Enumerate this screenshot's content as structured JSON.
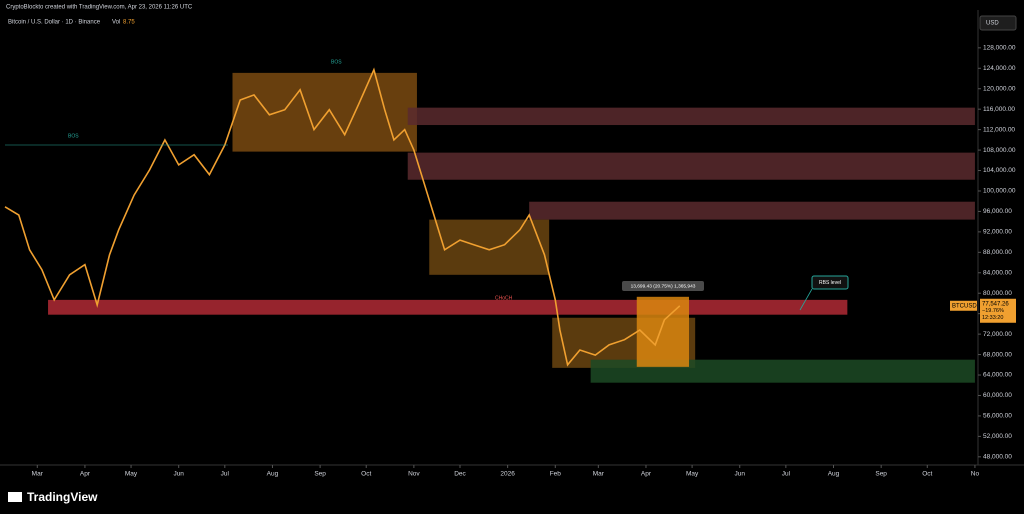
{
  "header": {
    "credit": "CryptoBlockto created with TradingView.com, Apr 23, 2026 11:26 UTC",
    "symbol": "Bitcoin / U.S. Dollar · 1D · Binance",
    "volume_label": "Vol",
    "volume_value": "8.75",
    "currency": "USD",
    "brand": "TradingView"
  },
  "chart_data": {
    "type": "line",
    "color": "#f0a030",
    "x": [
      -21,
      -12,
      -5,
      3,
      11,
      21,
      31,
      39,
      47,
      53,
      63,
      73,
      83,
      92,
      102,
      112,
      122,
      132,
      141,
      151,
      161,
      171,
      180,
      190,
      200,
      209,
      219,
      226,
      232,
      239,
      245,
      252,
      258,
      265,
      275,
      284,
      294,
      304,
      314,
      320,
      330,
      337,
      340,
      345,
      353,
      363,
      372,
      382,
      392,
      402,
      408,
      418
    ],
    "values": [
      96900,
      95300,
      88500,
      84600,
      78700,
      83600,
      85600,
      77700,
      87500,
      92400,
      99200,
      104100,
      110000,
      105100,
      107100,
      103200,
      109000,
      117800,
      118800,
      114900,
      115900,
      119800,
      112000,
      115900,
      111000,
      116900,
      123700,
      115900,
      110000,
      112000,
      108000,
      101200,
      95300,
      88500,
      90400,
      89500,
      88500,
      89500,
      92400,
      95300,
      87500,
      78700,
      72800,
      66000,
      68900,
      67900,
      69900,
      70900,
      72800,
      69900,
      74800,
      77547.26
    ],
    "xlim": [
      -21,
      612
    ],
    "ylim": [
      46400,
      135400
    ],
    "xticks": [
      {
        "value": 0,
        "label": "Mar"
      },
      {
        "value": 31,
        "label": "Apr"
      },
      {
        "value": 61,
        "label": "May"
      },
      {
        "value": 92,
        "label": "Jun"
      },
      {
        "value": 122,
        "label": "Jul"
      },
      {
        "value": 153,
        "label": "Aug"
      },
      {
        "value": 184,
        "label": "Sep"
      },
      {
        "value": 214,
        "label": "Oct"
      },
      {
        "value": 245,
        "label": "Nov"
      },
      {
        "value": 275,
        "label": "Dec"
      },
      {
        "value": 306,
        "label": "2026"
      },
      {
        "value": 337,
        "label": "Feb"
      },
      {
        "value": 365,
        "label": "Mar"
      },
      {
        "value": 396,
        "label": "Apr"
      },
      {
        "value": 426,
        "label": "May"
      },
      {
        "value": 457,
        "label": "Jun"
      },
      {
        "value": 487,
        "label": "Jul"
      },
      {
        "value": 518,
        "label": "Aug"
      },
      {
        "value": 549,
        "label": "Sep"
      },
      {
        "value": 579,
        "label": "Oct"
      },
      {
        "value": 610,
        "label": "No"
      }
    ],
    "yticks": [
      {
        "value": 48000,
        "label": "48,000.00"
      },
      {
        "value": 52000,
        "label": "52,000.00"
      },
      {
        "value": 56000,
        "label": "56,000.00"
      },
      {
        "value": 60000,
        "label": "60,000.00"
      },
      {
        "value": 64000,
        "label": "64,000.00"
      },
      {
        "value": 68000,
        "label": "68,000.00"
      },
      {
        "value": 72000,
        "label": "72,000.00"
      },
      {
        "value": 76000,
        "label": "76,000.00"
      },
      {
        "value": 80000,
        "label": "80,000.00"
      },
      {
        "value": 84000,
        "label": "84,000.00"
      },
      {
        "value": 88000,
        "label": "88,000.00"
      },
      {
        "value": 92000,
        "label": "92,000.00"
      },
      {
        "value": 96000,
        "label": "96,000.00"
      },
      {
        "value": 100000,
        "label": "100,000.00"
      },
      {
        "value": 104000,
        "label": "104,000.00"
      },
      {
        "value": 108000,
        "label": "108,000.00"
      },
      {
        "value": 112000,
        "label": "112,000.00"
      },
      {
        "value": 116000,
        "label": "116,000.00"
      },
      {
        "value": 120000,
        "label": "120,000.00"
      },
      {
        "value": 124000,
        "label": "124,000.00"
      },
      {
        "value": 128000,
        "label": "128,000.00"
      }
    ],
    "zones": [
      {
        "x": [
          127,
          247
        ],
        "y": [
          107700,
          123100
        ],
        "color": "#7a4a10"
      },
      {
        "x": [
          241,
          610
        ],
        "y": [
          112900,
          116300
        ],
        "color": "#5a2a2e"
      },
      {
        "x": [
          241,
          610
        ],
        "y": [
          102200,
          107500
        ],
        "color": "#5a2a2e"
      },
      {
        "x": [
          320,
          610
        ],
        "y": [
          94400,
          97900
        ],
        "color": "#5a2a2e"
      },
      {
        "x": [
          255,
          333
        ],
        "y": [
          83600,
          94400
        ],
        "color": "#6b4510"
      },
      {
        "x": [
          7,
          527
        ],
        "y": [
          75800,
          78700
        ],
        "color": "#b02a35"
      },
      {
        "x": [
          335,
          428
        ],
        "y": [
          65400,
          75200
        ],
        "color": "#6b4510"
      },
      {
        "x": [
          360,
          610
        ],
        "y": [
          62500,
          67000
        ],
        "color": "#1c4a24"
      },
      {
        "x": [
          390,
          424
        ],
        "y": [
          65600,
          79300
        ],
        "color": "#d9860f"
      }
    ],
    "annotations": {
      "bos_1": "BOS",
      "bos_2": "BOS",
      "choch": "CHoCH",
      "rbs": "RBS level",
      "measure": "13,699.43 (20.75%) 1,365,943"
    },
    "price_tag": {
      "symbol": "BTCUSD",
      "price": "77,547.26",
      "change": "−19.76%",
      "countdown": "12:33:20"
    }
  }
}
